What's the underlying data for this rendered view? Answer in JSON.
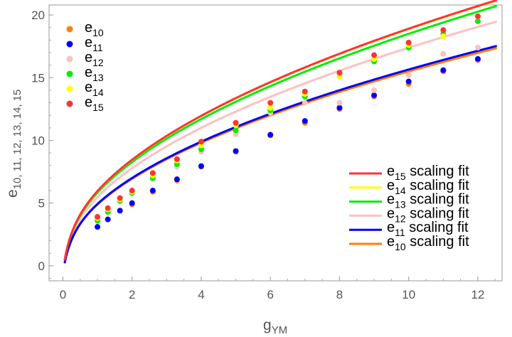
{
  "chart_data": {
    "type": "scatter",
    "xlabel": {
      "main": "g",
      "sub": "YM"
    },
    "ylabel": {
      "main": "e",
      "sub": "10, 11, 12, 13, 14, 15"
    },
    "xlim": [
      -0.4,
      12.7
    ],
    "ylim": [
      -1.2,
      20.8
    ],
    "xticks": [
      "0",
      "2",
      "4",
      "6",
      "8",
      "10",
      "12"
    ],
    "yticks": [
      "0",
      "5",
      "10",
      "15",
      "20"
    ],
    "x": [
      1,
      1.3,
      1.65,
      2,
      2.6,
      3.3,
      4,
      5,
      6,
      7,
      8,
      9,
      10,
      11,
      12
    ],
    "series": [
      {
        "name": "e10",
        "name_main": "e",
        "name_sub": "10",
        "color": "#ff8000",
        "values": [
          3.1,
          3.7,
          4.4,
          4.9,
          5.9,
          6.8,
          7.9,
          9.1,
          10.4,
          11.4,
          12.5,
          13.5,
          14.5,
          15.5,
          16.4
        ],
        "fit_label_main": "e",
        "fit_label_sub": "10",
        "fit_label_rest": " scaling fit",
        "fit_coef": 4.9,
        "fit_exp": 0.5
      },
      {
        "name": "e11",
        "name_main": "e",
        "name_sub": "11",
        "color": "#0000ff",
        "values": [
          3.1,
          3.7,
          4.4,
          5.0,
          6.0,
          6.9,
          7.95,
          9.15,
          10.45,
          11.55,
          12.6,
          13.6,
          14.7,
          15.6,
          16.5
        ],
        "fit_label_main": "e",
        "fit_label_sub": "11",
        "fit_label_rest": " scaling fit",
        "fit_coef": 4.95,
        "fit_exp": 0.5
      },
      {
        "name": "e12",
        "name_main": "e",
        "name_sub": "12",
        "color": "#ffc0c0",
        "values": [
          3.7,
          4.4,
          5.1,
          5.8,
          6.9,
          7.9,
          9.1,
          10.5,
          12.2,
          13.0,
          13.0,
          14.0,
          15.2,
          16.9,
          17.4
        ],
        "fit_label_main": "e",
        "fit_label_sub": "12",
        "fit_label_rest": " scaling fit",
        "fit_coef": 5.5,
        "fit_exp": 0.5
      },
      {
        "name": "e13",
        "name_main": "e",
        "name_sub": "13",
        "color": "#00ee00",
        "values": [
          3.6,
          4.3,
          5.2,
          5.8,
          7.0,
          8.1,
          9.3,
          10.8,
          12.4,
          13.5,
          15.1,
          16.3,
          17.4,
          18.5,
          19.5
        ],
        "fit_label_main": "e",
        "fit_label_sub": "13",
        "fit_label_rest": " scaling fit",
        "fit_coef": 5.85,
        "fit_exp": 0.5
      },
      {
        "name": "e14",
        "name_main": "e",
        "name_sub": "14",
        "color": "#ffff00",
        "values": [
          3.8,
          4.5,
          5.3,
          5.9,
          7.2,
          8.4,
          9.6,
          11.2,
          12.6,
          13.7,
          15.1,
          16.5,
          17.6,
          18.3,
          19.9
        ],
        "fit_label_main": "e",
        "fit_label_sub": "14",
        "fit_label_rest": " scaling fit",
        "fit_coef": 5.97,
        "fit_exp": 0.5
      },
      {
        "name": "e15",
        "name_main": "e",
        "name_sub": "15",
        "color": "#ff3333",
        "values": [
          3.9,
          4.6,
          5.4,
          6.0,
          7.4,
          8.5,
          9.9,
          11.4,
          13.0,
          13.9,
          15.4,
          16.8,
          17.8,
          18.8,
          19.9
        ],
        "fit_label_main": "e",
        "fit_label_sub": "15",
        "fit_label_rest": " scaling fit",
        "fit_coef": 5.98,
        "fit_exp": 0.5
      }
    ],
    "legend_points_order": [
      0,
      1,
      2,
      3,
      4,
      5
    ],
    "legend_fits_order": [
      5,
      4,
      3,
      2,
      1,
      0
    ],
    "legend_points_position": "top-left",
    "legend_fits_position": "bottom-right",
    "grid": false
  }
}
